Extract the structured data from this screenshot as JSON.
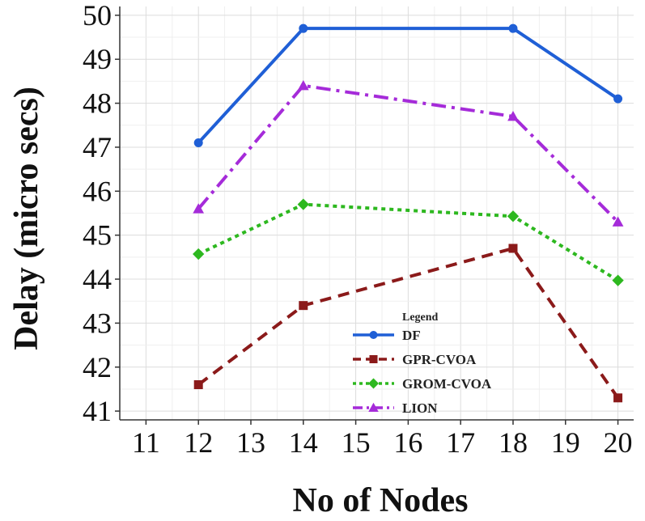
{
  "chart_data": {
    "type": "line",
    "xlabel": "No of Nodes",
    "ylabel": "Delay (micro secs)",
    "xlim": [
      10.5,
      20.3
    ],
    "ylim": [
      40.8,
      50.2
    ],
    "x_ticks": [
      11,
      12,
      13,
      14,
      15,
      16,
      17,
      18,
      19,
      20
    ],
    "y_ticks": [
      41,
      42,
      43,
      44,
      45,
      46,
      47,
      48,
      49,
      50
    ],
    "grid": true,
    "legend": {
      "title": "Legend",
      "placement": "bottom-right"
    },
    "x": [
      12,
      14,
      18,
      20
    ],
    "series": [
      {
        "name": "DF",
        "values": [
          47.1,
          49.7,
          49.7,
          48.1
        ],
        "color": "#1f5fd6",
        "marker": "circle",
        "dash": "solid"
      },
      {
        "name": "GPR-CVOA",
        "values": [
          41.6,
          43.4,
          44.7,
          41.3
        ],
        "color": "#8b1a1a",
        "marker": "square",
        "dash": "dashed"
      },
      {
        "name": "GROM-CVOA",
        "values": [
          44.57,
          45.7,
          45.43,
          43.97
        ],
        "color": "#2db81f",
        "marker": "diamond",
        "dash": "dotted"
      },
      {
        "name": "LION",
        "values": [
          45.6,
          48.4,
          47.7,
          45.3
        ],
        "color": "#a52bd9",
        "marker": "triangle",
        "dash": "dashdot"
      }
    ]
  }
}
